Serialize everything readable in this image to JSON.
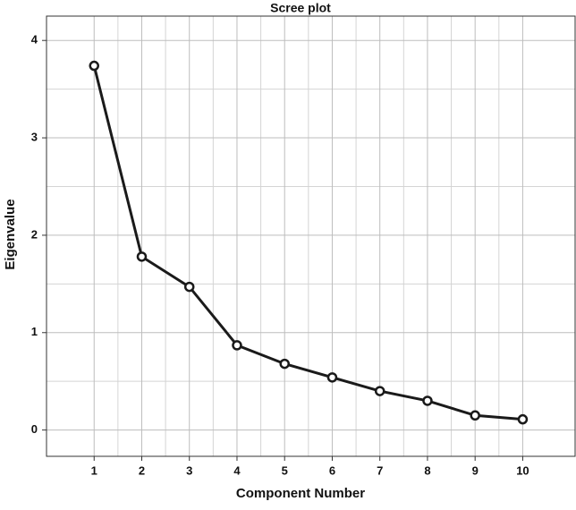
{
  "chart_data": {
    "type": "line",
    "title": "Scree plot",
    "x_label": "Component Number",
    "y_label": "Eigenvalue",
    "x": [
      1,
      2,
      3,
      4,
      5,
      6,
      7,
      8,
      9,
      10
    ],
    "series": [
      {
        "name": "Eigenvalue",
        "color": "#1a1a1a",
        "values": [
          3.74,
          1.78,
          1.47,
          0.87,
          0.68,
          0.54,
          0.4,
          0.3,
          0.15,
          0.11
        ]
      }
    ],
    "xlim": [
      0,
      11.1
    ],
    "ylim": [
      -0.27,
      4.25
    ],
    "xticks": [
      1,
      2,
      3,
      4,
      5,
      6,
      7,
      8,
      9,
      10
    ],
    "yticks": [
      0,
      1,
      2,
      3,
      4
    ],
    "grid": true,
    "minor_grid": true
  }
}
